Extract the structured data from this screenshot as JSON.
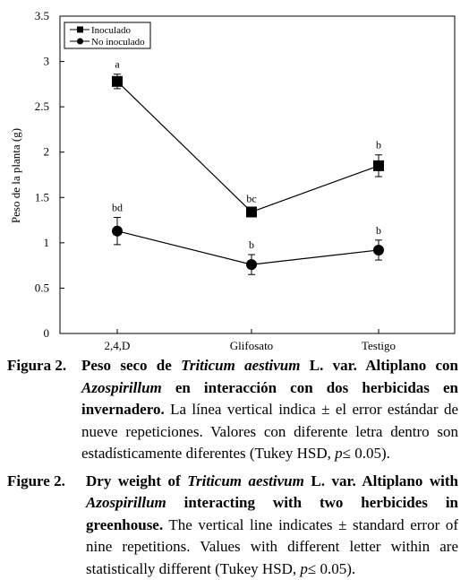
{
  "chart_data": {
    "type": "line",
    "categories": [
      "2,4,D",
      "Glifosato",
      "Testigo"
    ],
    "ylabel": "Peso de la planta (g)",
    "xlabel": "",
    "ylim": [
      0,
      3.5
    ],
    "yticks": [
      0,
      0.5,
      1,
      1.5,
      2,
      2.5,
      3,
      3.5
    ],
    "legend_position": "top-left",
    "grid": false,
    "series": [
      {
        "name": "Inoculado",
        "marker": "square",
        "values": [
          2.78,
          1.34,
          1.85
        ],
        "errors": [
          0.08,
          0.04,
          0.12
        ],
        "letters": [
          "a",
          "bc",
          "b"
        ]
      },
      {
        "name": "No inoculado",
        "marker": "circle",
        "values": [
          1.13,
          0.76,
          0.92
        ],
        "errors": [
          0.15,
          0.11,
          0.11
        ],
        "letters": [
          "bd",
          "b",
          "b"
        ]
      }
    ]
  },
  "caption_es": {
    "label": "Figura 2.",
    "bold1": "Peso seco de ",
    "italic1": "Triticum aestivum",
    "bold2": " L. var. Altiplano con ",
    "italic2": "Azospirillum",
    "bold3": " en interacción con dos herbicidas en invernadero.",
    "plain1": " La línea vertical indica ± el error estándar de nueve repeticiones. Valores con diferente letra dentro son estadísticamente diferentes (Tukey HSD, ",
    "p_var": "p",
    "plain2": "≤ 0.05)."
  },
  "caption_en": {
    "label": "Figure 2.",
    "bold1": "Dry weight of ",
    "italic1": "Triticum aestivum",
    "bold2": " L. var. Altiplano with ",
    "italic2": "Azospirillum",
    "bold3": " interacting with two herbicides in greenhouse.",
    "plain1": " The vertical line indicates ± standard error of nine repetitions. Values with different letter within are statistically different (Tukey HSD, ",
    "p_var": "p",
    "plain2": "≤ 0.05)."
  }
}
